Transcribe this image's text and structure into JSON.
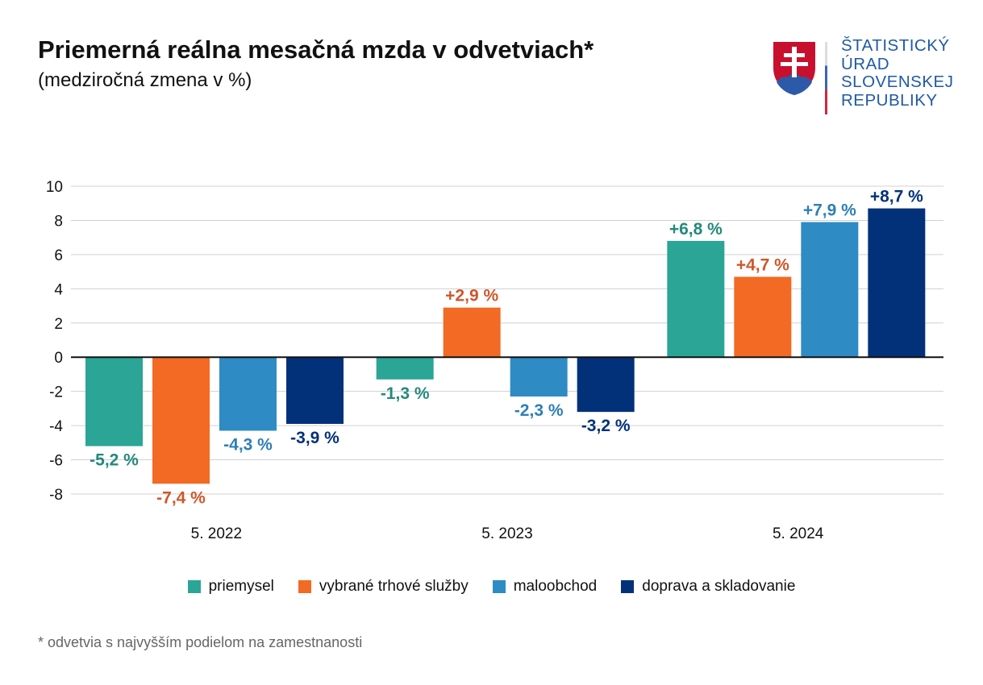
{
  "title": "Priemerná reálna mesačná mzda v odvetviach*",
  "subtitle": "(medziročná zmena v %)",
  "logo": {
    "lines": [
      "ŠTATISTICKÝ",
      "ÚRAD",
      "SLOVENSKEJ",
      "REPUBLIKY"
    ]
  },
  "footnote": "* odvetvia s najvyšším podielom na zamestnanosti",
  "chart_data": {
    "type": "bar",
    "categories": [
      "5. 2022",
      "5. 2023",
      "5. 2024"
    ],
    "ylim": [
      -8,
      10
    ],
    "yticks": [
      10,
      8,
      6,
      4,
      2,
      0,
      -2,
      -4,
      -6,
      -8
    ],
    "grid": true,
    "legend_position": "bottom",
    "series": [
      {
        "name": "priemysel",
        "color": "#2aa596",
        "label_color": "#23897c",
        "values": [
          -5.2,
          -1.3,
          6.8
        ],
        "labels": [
          "-5,2 %",
          "-1,3 %",
          "+6,8 %"
        ]
      },
      {
        "name": "vybrané trhové služby",
        "color": "#f26a24",
        "label_color": "#d0562a",
        "values": [
          -7.4,
          2.9,
          4.7
        ],
        "labels": [
          "-7,4 %",
          "+2,9 %",
          "+4,7 %"
        ]
      },
      {
        "name": "maloobchod",
        "color": "#2e8bc4",
        "label_color": "#2d7fb5",
        "values": [
          -4.3,
          -2.3,
          7.9
        ],
        "labels": [
          "-4,3 %",
          "-2,3 %",
          "+7,9 %"
        ]
      },
      {
        "name": "doprava a skladovanie",
        "color": "#02317a",
        "label_color": "#02317a",
        "values": [
          -3.9,
          -3.2,
          8.7
        ],
        "labels": [
          "-3,9 %",
          "-3,2 %",
          "+8,7 %"
        ]
      }
    ]
  }
}
